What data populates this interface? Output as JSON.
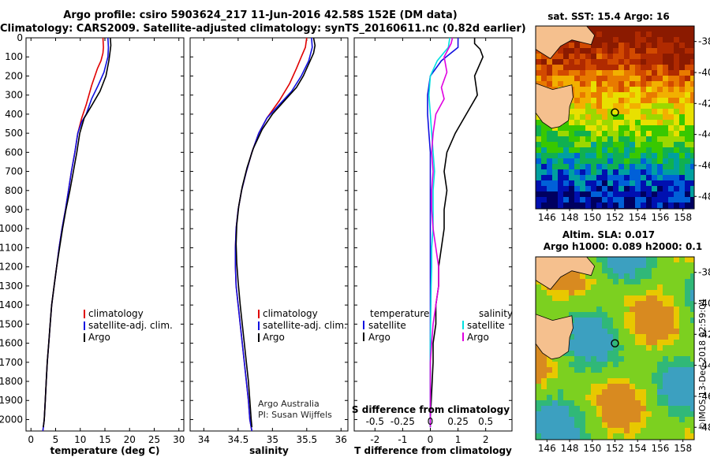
{
  "header": {
    "title1": "Argo profile: csiro 5903624_217 11-Jun-2016 42.58S 152E (DM data)",
    "title2": "Climatology: CARS2009. Satellite-adjusted climatology: synTS_20160611.nc (0.82d earlier)"
  },
  "colors": {
    "climatology": "#e00000",
    "satellite": "#1010e0",
    "argo": "#000000",
    "sat_salinity": "#00e0e0",
    "argo_salinity_diff": "#e000e0"
  },
  "chart_data": [
    {
      "type": "line",
      "xlabel": "temperature (deg C)",
      "xlim": [
        -1,
        31
      ],
      "ylim": [
        2060,
        0
      ],
      "xticks": [
        0,
        5,
        10,
        15,
        20,
        25,
        30
      ],
      "yticks": [
        0,
        100,
        200,
        300,
        400,
        500,
        600,
        700,
        800,
        900,
        1000,
        1100,
        1200,
        1300,
        1400,
        1500,
        1600,
        1700,
        1800,
        1900,
        2000
      ],
      "legend": {
        "placement": "lower-middle",
        "entries": [
          "climatology",
          "satellite-adj. clim.",
          "Argo"
        ]
      },
      "series": [
        {
          "name": "climatology",
          "color": "#e00000",
          "x": [
            14.6,
            14.7,
            14.6,
            14.2,
            13.5,
            12.3,
            11.2,
            10.3,
            9.5,
            8.9,
            8.2,
            7.6,
            7.0,
            6.3,
            5.7,
            5.2,
            4.7,
            4.2,
            3.9,
            3.6,
            3.3,
            3.1,
            2.9,
            2.7,
            2.5,
            2.4
          ],
          "y": [
            0,
            50,
            80,
            120,
            160,
            250,
            350,
            420,
            500,
            600,
            700,
            800,
            900,
            1000,
            1100,
            1200,
            1300,
            1400,
            1500,
            1600,
            1700,
            1800,
            1900,
            2000,
            2040,
            2060
          ]
        },
        {
          "name": "satellite-adj. clim.",
          "color": "#1010e0",
          "x": [
            15.6,
            15.7,
            15.6,
            14.8,
            13.6,
            12.3,
            11.2,
            10.3,
            9.5,
            8.9,
            8.2,
            7.6,
            7.0,
            6.3,
            5.7,
            5.2,
            4.7,
            4.2,
            3.9,
            3.6,
            3.3,
            3.1,
            2.9,
            2.7,
            2.5,
            2.4
          ],
          "y": [
            0,
            50,
            100,
            180,
            250,
            320,
            400,
            440,
            500,
            600,
            700,
            800,
            900,
            1000,
            1100,
            1200,
            1300,
            1400,
            1500,
            1600,
            1700,
            1800,
            1900,
            2000,
            2040,
            2060
          ]
        },
        {
          "name": "Argo",
          "color": "#000000",
          "x": [
            16.1,
            16.2,
            16.0,
            15.8,
            15.2,
            14.0,
            12.2,
            10.8,
            9.9,
            9.3,
            8.6,
            7.9,
            7.1,
            6.4,
            5.8,
            5.2,
            4.7,
            4.2,
            3.9,
            3.6,
            3.3,
            3.1,
            2.9,
            2.7,
            2.5
          ],
          "y": [
            0,
            40,
            80,
            120,
            200,
            280,
            360,
            420,
            500,
            600,
            700,
            800,
            900,
            1000,
            1100,
            1200,
            1300,
            1400,
            1500,
            1600,
            1700,
            1800,
            1900,
            2000,
            2040
          ]
        }
      ]
    },
    {
      "type": "line",
      "xlabel": "salinity",
      "xlim": [
        33.8,
        36.1
      ],
      "ylim": [
        2060,
        0
      ],
      "xticks": [
        34,
        34.5,
        35,
        35.5,
        36
      ],
      "legend": {
        "placement": "lower-middle",
        "entries": [
          "climatology",
          "satellite-adj. clim.",
          "Argo"
        ]
      },
      "annotation": [
        "Argo Australia",
        "PI: Susan Wijffels"
      ],
      "series": [
        {
          "name": "climatology",
          "color": "#e00000",
          "x": [
            35.5,
            35.48,
            35.42,
            35.35,
            35.25,
            35.1,
            34.92,
            34.8,
            34.7,
            34.62,
            34.55,
            34.5,
            34.47,
            34.46,
            34.46,
            34.47,
            34.5,
            34.53,
            34.56,
            34.59,
            34.62,
            34.65,
            34.67,
            34.69,
            34.7
          ],
          "y": [
            0,
            50,
            100,
            160,
            240,
            330,
            420,
            500,
            600,
            700,
            800,
            900,
            1000,
            1100,
            1200,
            1300,
            1400,
            1500,
            1600,
            1700,
            1800,
            1900,
            2000,
            2040,
            2060
          ]
        },
        {
          "name": "satellite-adj. clim.",
          "color": "#1010e0",
          "x": [
            35.57,
            35.58,
            35.53,
            35.42,
            35.28,
            35.1,
            34.92,
            34.8,
            34.7,
            34.62,
            34.55,
            34.5,
            34.47,
            34.46,
            34.46,
            34.47,
            34.5,
            34.53,
            34.56,
            34.59,
            34.62,
            34.65,
            34.67,
            34.69,
            34.7
          ],
          "y": [
            0,
            50,
            120,
            200,
            280,
            350,
            420,
            500,
            600,
            700,
            800,
            900,
            1000,
            1100,
            1200,
            1300,
            1400,
            1500,
            1600,
            1700,
            1800,
            1900,
            2000,
            2040,
            2060
          ]
        },
        {
          "name": "Argo",
          "color": "#000000",
          "x": [
            35.6,
            35.62,
            35.6,
            35.55,
            35.5,
            35.45,
            35.35,
            35.2,
            35.0,
            34.85,
            34.72,
            34.63,
            34.56,
            34.51,
            34.48,
            34.47,
            34.48,
            34.5,
            34.53,
            34.56,
            34.59,
            34.62,
            34.65,
            34.67,
            34.69,
            34.7
          ],
          "y": [
            0,
            40,
            80,
            120,
            160,
            200,
            260,
            320,
            400,
            480,
            580,
            680,
            780,
            880,
            980,
            1080,
            1180,
            1280,
            1400,
            1500,
            1600,
            1700,
            1800,
            1900,
            2000,
            2040
          ]
        }
      ]
    },
    {
      "type": "line",
      "xlabel": "T difference from climatology",
      "xlabel_top": "S difference from climatology",
      "xlim": [
        -2.75,
        2.95
      ],
      "ylim": [
        2060,
        0
      ],
      "xticks": [
        -2,
        -1,
        0,
        1,
        2
      ],
      "xticks_s": [
        "-0.5",
        "-0.25",
        "0",
        "0.25",
        "0.5"
      ],
      "legend": {
        "placement": "lower",
        "temperature": [
          "satellite",
          "Argo"
        ],
        "salinity": [
          "satellite",
          "Argo"
        ],
        "temperature_title": "temperature",
        "salinity_title": "salinity"
      },
      "series": [
        {
          "name": "satellite",
          "color": "#1010e0",
          "x": [
            1.0,
            1.0,
            0.4,
            0.0,
            -0.1,
            -0.1,
            -0.05,
            0.0,
            0.0,
            0.0,
            0.0,
            0.0,
            0.0,
            0.0,
            0.0,
            0.0,
            0.0,
            0.0,
            0.0,
            0.0,
            0.0
          ],
          "y": [
            0,
            50,
            120,
            200,
            300,
            400,
            500,
            600,
            700,
            800,
            900,
            1000,
            1100,
            1200,
            1300,
            1400,
            1500,
            1600,
            1700,
            1800,
            2040
          ]
        },
        {
          "name": "Argo",
          "color": "#000000",
          "x": [
            1.6,
            1.6,
            1.8,
            1.9,
            1.6,
            1.7,
            1.3,
            0.9,
            0.6,
            0.5,
            0.6,
            0.5,
            0.5,
            0.4,
            0.3,
            0.3,
            0.2,
            0.2,
            0.1,
            0.1,
            0.0
          ],
          "y": [
            0,
            30,
            60,
            100,
            200,
            300,
            400,
            500,
            600,
            700,
            800,
            900,
            1000,
            1100,
            1200,
            1300,
            1400,
            1500,
            1600,
            1700,
            2000
          ]
        },
        {
          "name": "satellite",
          "color": "#00e0e0",
          "x": [
            0.7,
            0.65,
            0.25,
            0.0,
            -0.05,
            0.0,
            0.05,
            0.1,
            0.15,
            0.1,
            0.1,
            0.1,
            0.05,
            0.05,
            0.03,
            0.02,
            0.01,
            0.0,
            0.0,
            0.0
          ],
          "y": [
            0,
            50,
            120,
            200,
            300,
            400,
            500,
            600,
            700,
            800,
            900,
            1000,
            1100,
            1200,
            1300,
            1400,
            1500,
            1600,
            1700,
            2040
          ]
        },
        {
          "name": "Argo",
          "color": "#e000e0",
          "x": [
            0.8,
            0.75,
            0.5,
            0.6,
            0.4,
            0.5,
            0.2,
            0.1,
            0.05,
            0.1,
            0.05,
            0.05,
            0.1,
            0.2,
            0.3,
            0.3,
            0.2,
            0.1,
            0.05,
            0.0,
            0.0
          ],
          "y": [
            0,
            30,
            100,
            180,
            260,
            320,
            400,
            500,
            600,
            700,
            800,
            900,
            1000,
            1100,
            1200,
            1300,
            1400,
            1500,
            1600,
            1700,
            2040
          ]
        }
      ]
    },
    {
      "type": "heatmap",
      "title": "sat. SST: 15.4 Argo: 16",
      "xticks": [
        146,
        148,
        150,
        152,
        154,
        156,
        158
      ],
      "yticks": [
        -38,
        -40,
        -42,
        -44,
        -46,
        -48
      ],
      "xlim": [
        145,
        159
      ],
      "ylim": [
        -48.8,
        -37
      ]
    },
    {
      "type": "heatmap",
      "title": "Altim. SLA: 0.017",
      "subtitle": "Argo h1000: 0.089 h2000: 0.1",
      "xticks": [
        146,
        148,
        150,
        152,
        154,
        156,
        158
      ],
      "yticks": [
        -38,
        -40,
        -42,
        -44,
        -46,
        -48
      ],
      "xlim": [
        145,
        159
      ],
      "ylim": [
        -48.8,
        -37
      ]
    }
  ],
  "footer": {
    "stamp": "©IMOS 13-Dec-2018 02:59:04"
  }
}
